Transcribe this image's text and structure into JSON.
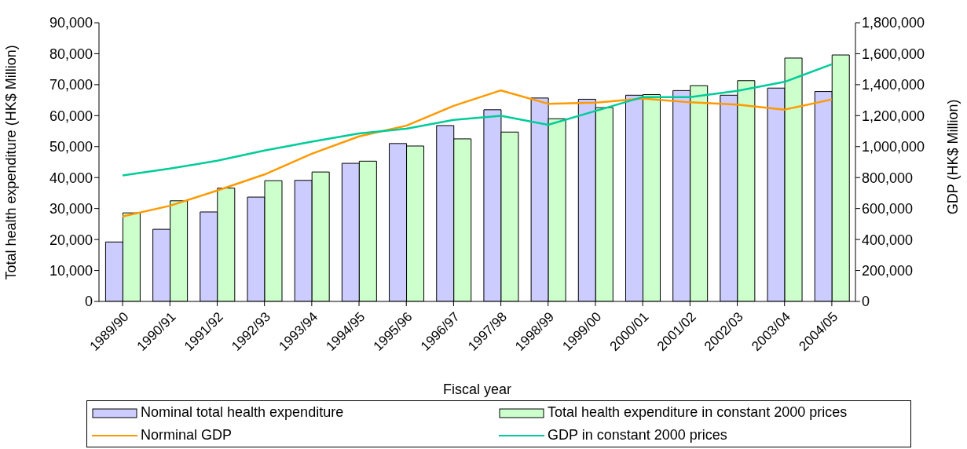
{
  "chart_data": {
    "type": "bar",
    "xlabel": "Fiscal year",
    "ylabel": "Total health expenditure (HK$ Million)",
    "y2label": "GDP (HK$ Million)",
    "categories": [
      "1989/90",
      "1990/91",
      "1991/92",
      "1992/93",
      "1993/94",
      "1994/95",
      "1995/96",
      "1996/97",
      "1997/98",
      "1998/99",
      "1999/00",
      "2000/01",
      "2001/02",
      "2002/03",
      "2003/04",
      "2004/05"
    ],
    "series": [
      {
        "name": "Nominal total health expenditure",
        "color": "#ccccff",
        "values": [
          19200,
          23300,
          28900,
          33700,
          39100,
          44600,
          51000,
          56800,
          61900,
          65700,
          65300,
          66600,
          68100,
          66600,
          68900,
          67800
        ]
      },
      {
        "name": "Total health expenditure in constant 2000 prices",
        "color": "#ccffcc",
        "values": [
          28600,
          32500,
          36600,
          39000,
          41800,
          45300,
          50200,
          52500,
          54700,
          59000,
          62600,
          66800,
          69700,
          71300,
          78600,
          79600
        ]
      },
      {
        "name": "Norminal GDP",
        "type": "line",
        "axis": "y2",
        "color": "#ff9900",
        "values": [
          549000,
          618000,
          716000,
          820000,
          954000,
          1066000,
          1135000,
          1263000,
          1363000,
          1277000,
          1284000,
          1311000,
          1286000,
          1272000,
          1239000,
          1305000
        ]
      },
      {
        "name": "GDP in constant 2000 prices",
        "type": "line",
        "axis": "y2",
        "color": "#00cc99",
        "values": [
          814000,
          858000,
          909000,
          975000,
          1032000,
          1085000,
          1116000,
          1173000,
          1199000,
          1141000,
          1230000,
          1320000,
          1320000,
          1360000,
          1418000,
          1532000
        ]
      }
    ],
    "ylim": [
      0,
      90000
    ],
    "yticks": [
      0,
      {
        "value": 10000,
        "label": "10,000"
      },
      {
        "value": 20000,
        "label": "20,000"
      },
      {
        "value": 30000,
        "label": "30,000"
      },
      {
        "value": 40000,
        "label": "40,000"
      },
      {
        "value": 50000,
        "label": "50,000"
      },
      {
        "value": 60000,
        "label": "60,000"
      },
      {
        "value": 70000,
        "label": "70,000"
      },
      {
        "value": 80000,
        "label": "80,000"
      },
      {
        "value": 90000,
        "label": "90,000"
      }
    ],
    "y2lim": [
      0,
      1800000
    ],
    "y2ticks": [
      0,
      {
        "value": 200000,
        "label": "200,000"
      },
      {
        "value": 400000,
        "label": "400,000"
      },
      {
        "value": 600000,
        "label": "600,000"
      },
      {
        "value": 800000,
        "label": "800,000"
      },
      {
        "value": 1000000,
        "label": "1,000,000"
      },
      {
        "value": 1200000,
        "label": "1,200,000"
      },
      {
        "value": 1400000,
        "label": "1,400,000"
      },
      {
        "value": 1600000,
        "label": "1,600,000"
      },
      {
        "value": 1800000,
        "label": "1,800,000"
      }
    ],
    "grid": false,
    "legend": "bottom",
    "marker": "none",
    "line_style": "solid"
  }
}
